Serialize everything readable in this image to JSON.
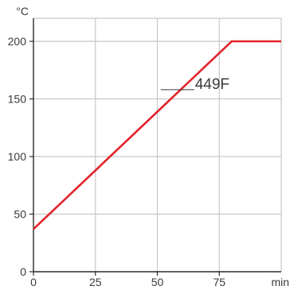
{
  "chart_data": {
    "type": "line",
    "title": "",
    "xlabel": "min",
    "ylabel": "°C",
    "xlim": [
      0,
      100
    ],
    "ylim": [
      0,
      220
    ],
    "x_ticks": [
      0,
      25,
      50,
      75
    ],
    "y_ticks": [
      0,
      50,
      100,
      150,
      200
    ],
    "x_tick_labels": [
      "0",
      "25",
      "50",
      "75"
    ],
    "y_tick_labels": [
      "0",
      "50",
      "100",
      "150",
      "200"
    ],
    "grid": true,
    "legend": "none",
    "series": [
      {
        "color": "#e2222b",
        "x": [
          0,
          80,
          100
        ],
        "y": [
          37,
          200,
          200
        ]
      }
    ],
    "annotations": [
      {
        "text": "449F",
        "x": 61,
        "y": 158
      }
    ],
    "colors": {
      "grid": "#c8c8c8",
      "axis": "#2b2b2b",
      "text": "#3a3a3a",
      "leader": "#3a3a3a"
    }
  }
}
